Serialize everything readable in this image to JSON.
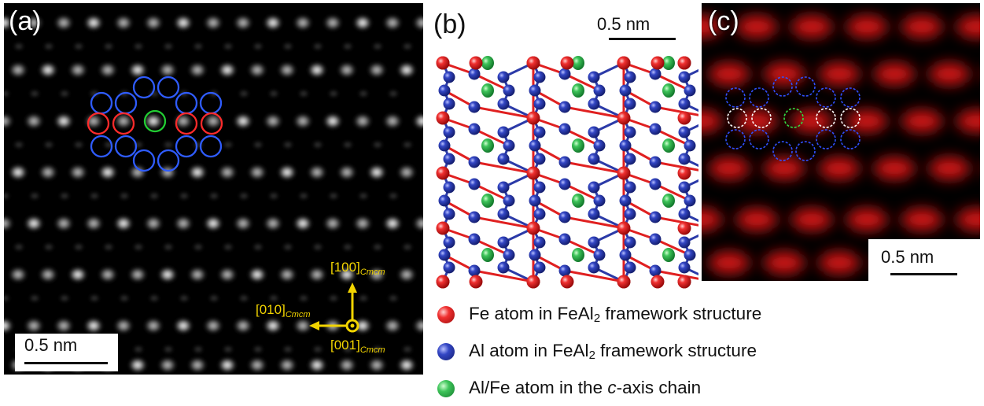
{
  "panels": {
    "a": {
      "label": "(a)",
      "scale_bar": "0.5 nm",
      "directions": {
        "up": {
          "main": "[100]",
          "sub": "Cmcm"
        },
        "left": {
          "main": "[010]",
          "sub": "Cmcm"
        },
        "out": {
          "main": "[001]",
          "sub": "Cmcm"
        }
      }
    },
    "b": {
      "label": "(b)",
      "scale_bar": "0.5 nm"
    },
    "c": {
      "label": "(c)",
      "scale_bar": "0.5 nm"
    }
  },
  "legend": [
    {
      "pre": "Fe atom in FeAl",
      "sub": "2",
      "post": " framework structure",
      "color": "#e02020"
    },
    {
      "pre": "Al atom in FeAl",
      "sub": "2",
      "post": " framework structure",
      "color": "#2b3aa8"
    },
    {
      "pre": "Al/Fe atom in the ",
      "italic": "c",
      "post": "-axis chain",
      "color": "#2ea84a"
    }
  ],
  "colors": {
    "fe": "#e02020",
    "al": "#2b3aa8",
    "chain": "#2ea84a",
    "arrow": "#f2d400"
  }
}
